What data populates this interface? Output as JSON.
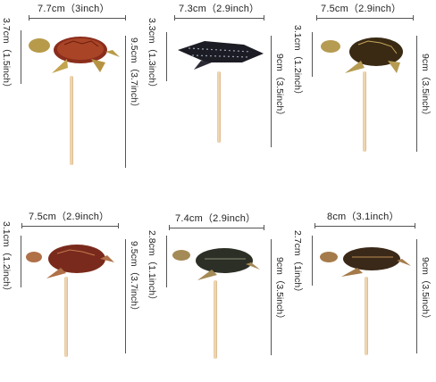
{
  "toppers": [
    {
      "width_label": "7.7cm（3inch）",
      "height_label": "3.7cm（1.5inch）",
      "total_label": "9.5cm（3.7inch）",
      "turtle": "green-sea-turtle-icon"
    },
    {
      "width_label": "7.3cm（2.9inch）",
      "height_label": "3.3cm（1.3inch）",
      "total_label": "9cm（3.5inch）",
      "turtle": "leatherback-turtle-icon"
    },
    {
      "width_label": "7.5cm（2.9inch）",
      "height_label": "3.1cm（1.2inch）",
      "total_label": "9cm（3.5inch）",
      "turtle": "hawksbill-turtle-icon"
    },
    {
      "width_label": "7.5cm（2.9inch）",
      "height_label": "3.1cm（1.2inch）",
      "total_label": "9.5cm（3.7inch）",
      "turtle": "loggerhead-turtle-icon"
    },
    {
      "width_label": "7.4cm（2.9inch）",
      "height_label": "2.8cm（1.1inch）",
      "total_label": "9cm（3.5inch）",
      "turtle": "flatback-turtle-icon"
    },
    {
      "width_label": "8cm（3.1inch）",
      "height_label": "2.7cm（1inch）",
      "total_label": "9cm（3.5inch）",
      "turtle": "olive-ridley-turtle-icon"
    }
  ]
}
